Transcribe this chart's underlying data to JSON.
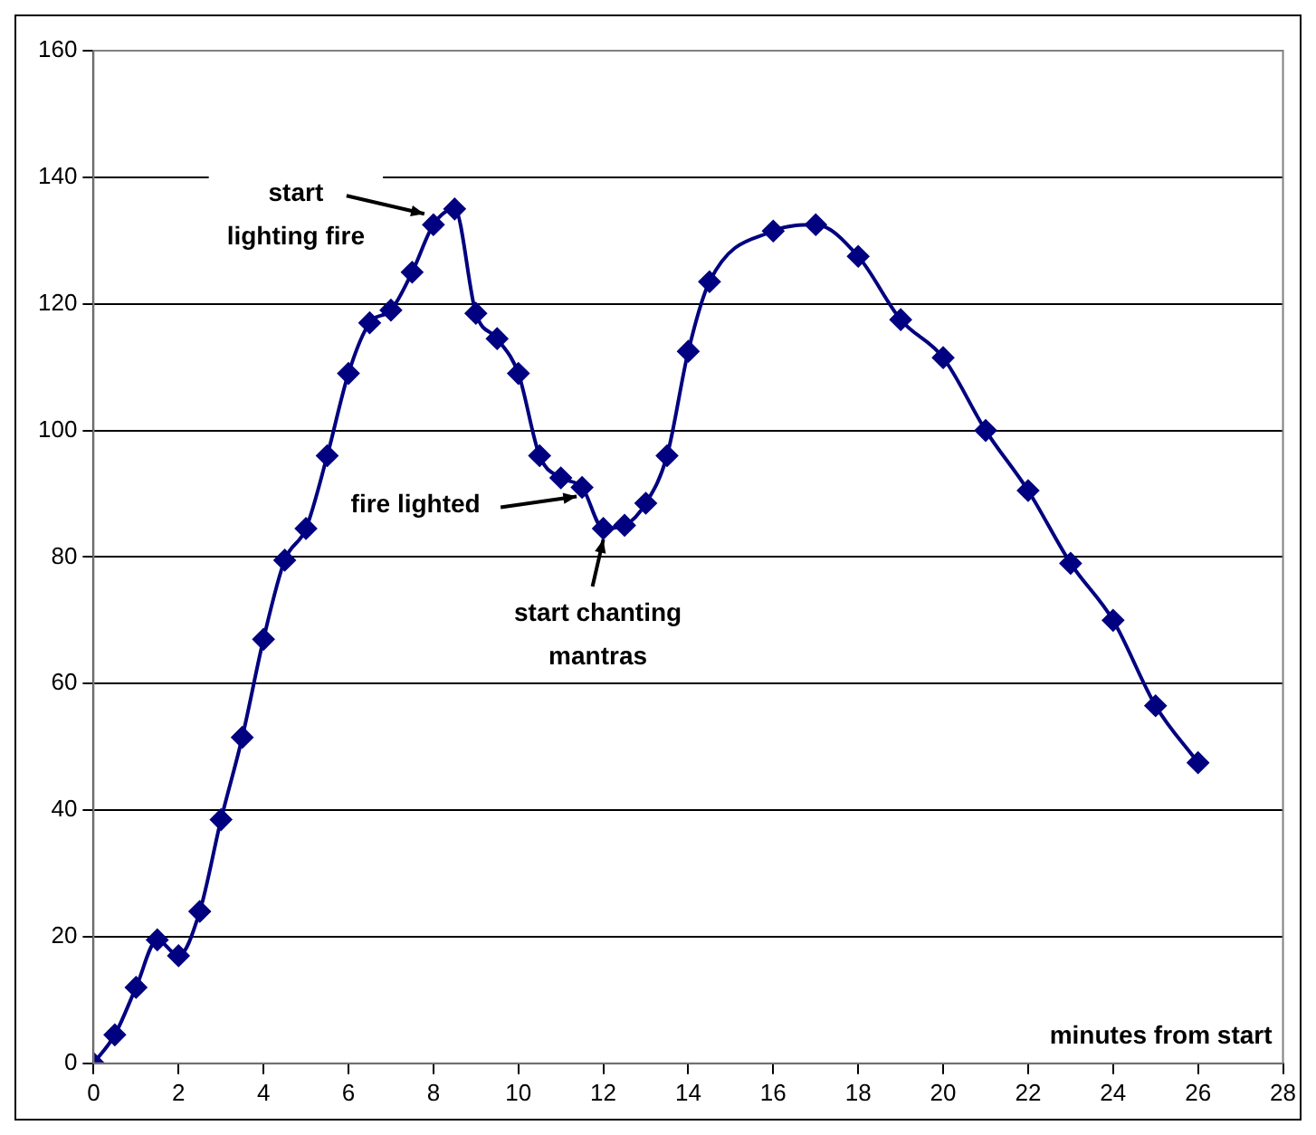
{
  "chart_data": {
    "type": "line",
    "xlabel": "minutes from start",
    "x": [
      0,
      0.5,
      1,
      1.5,
      2,
      2.5,
      3,
      3.5,
      4,
      4.5,
      5,
      5.5,
      6,
      6.5,
      7,
      7.5,
      8,
      8.5,
      9,
      9.5,
      10,
      10.5,
      11,
      11.5,
      12,
      12.5,
      13,
      13.5,
      14,
      14.5,
      16,
      17,
      18,
      19,
      20,
      21,
      22,
      23,
      24,
      25,
      26
    ],
    "series": [
      {
        "color": "#000080",
        "values": [
          0,
          4.5,
          12,
          19.5,
          17,
          24,
          38.5,
          51.5,
          67,
          79.5,
          84.5,
          96,
          109,
          117,
          119,
          125,
          132.5,
          135,
          118.5,
          114.5,
          109,
          96,
          92.5,
          91,
          84.5,
          85,
          88.5,
          96,
          112.5,
          123.5,
          131.5,
          132.5,
          127.5,
          117.5,
          111.5,
          100,
          90.5,
          79,
          70,
          56.5,
          47.5
        ]
      }
    ],
    "xlim": [
      0,
      28
    ],
    "xticks": [
      0,
      2,
      4,
      6,
      8,
      10,
      12,
      14,
      16,
      18,
      20,
      22,
      24,
      26,
      28
    ],
    "ylim": [
      0,
      160
    ],
    "yticks": [
      0,
      20,
      40,
      60,
      80,
      100,
      120,
      140,
      160
    ],
    "grid": "y",
    "legend": false,
    "marker": "diamond",
    "line_style": "solid",
    "annotations": [
      {
        "text": "start\nlighting fire",
        "x": 8,
        "y": 132.5
      },
      {
        "text": "fire lighted",
        "x": 11.5,
        "y": 91
      },
      {
        "text": "start chanting\nmantras",
        "x": 12,
        "y": 84.5
      }
    ]
  }
}
